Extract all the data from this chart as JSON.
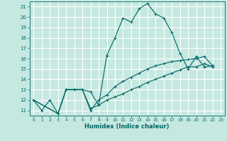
{
  "xlabel": "Humidex (Indice chaleur)",
  "background_color": "#c5e8e0",
  "grid_color": "#ffffff",
  "line_color": "#006666",
  "xlim": [
    -0.5,
    23.5
  ],
  "ylim": [
    10.5,
    21.5
  ],
  "xticks": [
    0,
    1,
    2,
    3,
    4,
    5,
    6,
    7,
    8,
    9,
    10,
    11,
    12,
    13,
    14,
    15,
    16,
    17,
    18,
    19,
    20,
    21,
    22,
    23
  ],
  "yticks": [
    11,
    12,
    13,
    14,
    15,
    16,
    17,
    18,
    19,
    20,
    21
  ],
  "series": [
    {
      "x": [
        0,
        1,
        2,
        3,
        4,
        5,
        6,
        7,
        8,
        9,
        10,
        11,
        12,
        13,
        14,
        15,
        16,
        17,
        18,
        19,
        20,
        21,
        22
      ],
      "y": [
        12,
        11,
        12,
        10.7,
        13,
        13,
        13,
        12.8,
        11.5,
        16.3,
        18,
        19.9,
        19.5,
        20.8,
        21.3,
        20.3,
        19.9,
        18.5,
        16.5,
        15.0,
        16.2,
        15.2,
        15.3
      ]
    },
    {
      "x": [
        0,
        3,
        4,
        5,
        6,
        7,
        8,
        9,
        10,
        11,
        12,
        13,
        14,
        15,
        16,
        17,
        18,
        19,
        20,
        21,
        22
      ],
      "y": [
        12,
        10.7,
        13,
        13,
        13,
        11.2,
        11.5,
        12,
        12.3,
        12.6,
        13,
        13.3,
        13.7,
        14.0,
        14.3,
        14.6,
        14.9,
        15.2,
        15.2,
        15.5,
        15.2
      ]
    },
    {
      "x": [
        0,
        3,
        4,
        5,
        6,
        7,
        8,
        9,
        10,
        11,
        12,
        13,
        14,
        15,
        16,
        17,
        18,
        19,
        20,
        21,
        22
      ],
      "y": [
        12,
        10.7,
        13,
        13,
        13,
        11.0,
        12.0,
        12.5,
        13.3,
        13.8,
        14.2,
        14.6,
        15.0,
        15.3,
        15.5,
        15.7,
        15.8,
        15.9,
        16.0,
        16.2,
        15.3
      ]
    }
  ]
}
